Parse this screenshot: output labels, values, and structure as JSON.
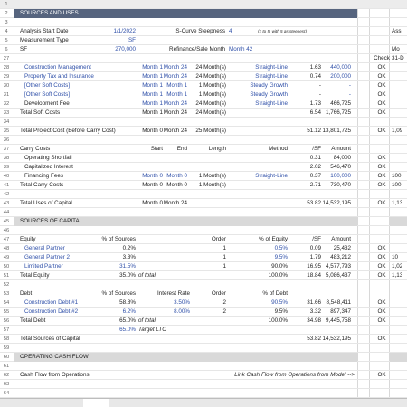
{
  "input_color": "#2e4fa8",
  "rows": [
    {
      "n": "1",
      "band": "top"
    },
    {
      "n": "2",
      "band": "dark",
      "b": "SOURCES AND USES"
    },
    {
      "n": "3"
    },
    {
      "n": "4",
      "b": "Analysis Start Date",
      "c": "1/1/2022",
      "p": "S-Curve Steepness",
      "q": "4",
      "g": "(1 to 5, with 5 as steepest)",
      "k": "Ass",
      "inputs": [
        "c",
        "q"
      ]
    },
    {
      "n": "5",
      "b": "Measurement Type",
      "c": "SF",
      "inputs": [
        "c"
      ]
    },
    {
      "n": "6",
      "b": "SF",
      "c": "270,000",
      "p": "Refinance/Sale Month",
      "q": "Month 42",
      "k": "Mo",
      "inputs": [
        "c",
        "q"
      ]
    },
    {
      "n": "27",
      "j": "Check",
      "k": "31-D"
    },
    {
      "n": "28",
      "bi": "Construction Management",
      "d": "Month 1",
      "e": "Month 24",
      "f": "24 Month(s)",
      "m": "Straight-Line",
      "h": "1.63",
      "i": "440,000",
      "j": "OK",
      "inputs": [
        "bi",
        "d",
        "e",
        "m",
        "i"
      ]
    },
    {
      "n": "29",
      "bi": "Property Tax and Insurance",
      "d": "Month 1",
      "e": "Month 24",
      "f": "24 Month(s)",
      "m": "Straight-Line",
      "h": "0.74",
      "i": "200,000",
      "j": "OK",
      "inputs": [
        "bi",
        "d",
        "e",
        "m",
        "i"
      ]
    },
    {
      "n": "30",
      "bi": "[Other Soft Costs]",
      "d": "Month 1",
      "e": "Month 1",
      "f": "1 Month(s)",
      "m": "Steady Growth",
      "h": "-",
      "i": "-",
      "j": "OK",
      "inputs": [
        "bi",
        "d",
        "e",
        "m",
        "i"
      ]
    },
    {
      "n": "31",
      "bi": "[Other Soft Costs]",
      "d": "Month 1",
      "e": "Month 1",
      "f": "1 Month(s)",
      "m": "Steady Growth",
      "h": "-",
      "i": "-",
      "j": "OK",
      "inputs": [
        "bi",
        "d",
        "e",
        "m",
        "i"
      ]
    },
    {
      "n": "32",
      "bi": "Development Fee",
      "d": "Month 1",
      "e": "Month 24",
      "f": "24 Month(s)",
      "m": "Straight-Line",
      "h": "1.73",
      "i": "466,725",
      "j": "OK",
      "inputs": [
        "d",
        "e",
        "m"
      ]
    },
    {
      "n": "33",
      "b": "Total Soft Costs",
      "d": "Month 1",
      "e": "Month 24",
      "f": "24 Month(s)",
      "h": "6.54",
      "i": "1,766,725",
      "j": "OK"
    },
    {
      "n": "34"
    },
    {
      "n": "35",
      "b": "Total Project Cost (Before Carry Cost)",
      "d": "Month 0",
      "e": "Month 24",
      "f": "25 Month(s)",
      "h": "51.12",
      "i": "13,801,725",
      "j": "OK",
      "k": "1,09"
    },
    {
      "n": "36"
    },
    {
      "n": "37",
      "b": "Carry Costs",
      "d": "Start",
      "e": "End",
      "f": "Length",
      "m": "Method",
      "h": "/SF",
      "i": "Amount"
    },
    {
      "n": "38",
      "bi": "Operating Shortfall",
      "h": "0.31",
      "i": "84,000",
      "j": "OK"
    },
    {
      "n": "39",
      "bi": "Capitalized Interest",
      "h": "2.02",
      "i": "546,470",
      "j": "OK"
    },
    {
      "n": "40",
      "bi": "Financing Fees",
      "d": "Month 0",
      "e": "Month 0",
      "f": "1 Month(s)",
      "m": "Straight-Line",
      "h": "0.37",
      "i": "100,000",
      "j": "OK",
      "k": "100",
      "inputs": [
        "d",
        "e",
        "m",
        "i"
      ]
    },
    {
      "n": "41",
      "b": "Total Carry Costs",
      "d": "Month 0",
      "e": "Month 0",
      "f": "1 Month(s)",
      "h": "2.71",
      "i": "730,470",
      "j": "OK",
      "k": "100"
    },
    {
      "n": "42"
    },
    {
      "n": "43",
      "b": "Total Uses of Capital",
      "d": "Month 0",
      "e": "Month 24",
      "h": "53.82",
      "i": "14,532,195",
      "j": "OK",
      "k": "1,13"
    },
    {
      "n": "44"
    },
    {
      "n": "45",
      "band": "light",
      "b": "SOURCES OF CAPITAL"
    },
    {
      "n": "46"
    },
    {
      "n": "47",
      "b": "Equity",
      "c": "% of Sources",
      "o": "Order",
      "m": "% of Equity",
      "h": "/SF",
      "i": "Amount"
    },
    {
      "n": "48",
      "bi": "General Partner",
      "c": "0.2%",
      "o": "1",
      "m": "0.5%",
      "h": "0.09",
      "i": "25,432",
      "j": "OK",
      "inputs": [
        "bi",
        "m"
      ]
    },
    {
      "n": "49",
      "bi": "General Partner 2",
      "c": "3.3%",
      "o": "1",
      "m": "9.5%",
      "h": "1.79",
      "i": "483,212",
      "j": "OK",
      "k": "10",
      "inputs": [
        "bi",
        "m"
      ]
    },
    {
      "n": "50",
      "bi": "Limited Partner",
      "c": "31.5%",
      "o": "1",
      "m": "90.0%",
      "h": "16.95",
      "i": "4,577,793",
      "j": "OK",
      "k": "1,02",
      "inputs": [
        "bi",
        "c"
      ]
    },
    {
      "n": "51",
      "b": "Total Equity",
      "c": "35.0%",
      "cn": "of total",
      "m": "100.0%",
      "h": "18.84",
      "i": "5,086,437",
      "j": "OK",
      "k": "1,13"
    },
    {
      "n": "52"
    },
    {
      "n": "53",
      "b": "Debt",
      "c": "% of Sources",
      "r": "Interest Rate",
      "o": "Order",
      "m": "% of Debt"
    },
    {
      "n": "54",
      "bi": "Construction Debt #1",
      "c": "58.8%",
      "r": "3.50%",
      "o": "2",
      "m": "90.5%",
      "h": "31.66",
      "i": "8,548,411",
      "j": "OK",
      "inputs": [
        "bi",
        "r",
        "m"
      ]
    },
    {
      "n": "55",
      "bi": "Construction Debt #2",
      "c": "6.2%",
      "r": "8.00%",
      "o": "2",
      "m": "9.5%",
      "h": "3.32",
      "i": "897,347",
      "j": "OK",
      "inputs": [
        "bi",
        "c",
        "r"
      ]
    },
    {
      "n": "56",
      "b": "Total Debt",
      "c": "65.0%",
      "cn": "of total",
      "m": "100.0%",
      "h": "34.98",
      "i": "9,445,758",
      "j": "OK"
    },
    {
      "n": "57",
      "c": "65.0%",
      "cn": "Target LTC",
      "inputs": [
        "c"
      ]
    },
    {
      "n": "58",
      "b": "Total Sources of Capital",
      "h": "53.82",
      "i": "14,532,195",
      "j": "OK"
    },
    {
      "n": "59"
    },
    {
      "n": "60",
      "band": "light",
      "b": "OPERATING CASH FLOW"
    },
    {
      "n": "61"
    },
    {
      "n": "62",
      "b": "Cash Flow from Operations",
      "link": "Link Cash Flow from Operations from Model -->",
      "j": "OK"
    },
    {
      "n": "63"
    },
    {
      "n": "64"
    }
  ]
}
